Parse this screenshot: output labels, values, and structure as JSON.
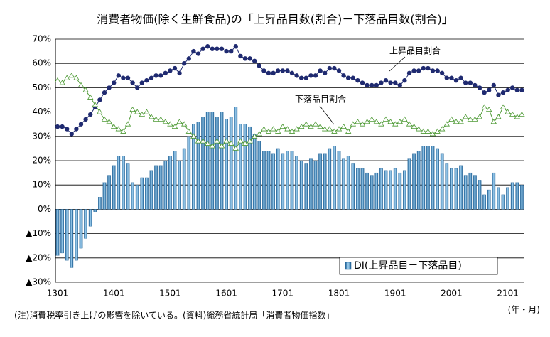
{
  "chart_data": {
    "type": "bar_line",
    "title": "消費者物価(除く生鮮食品)の「上昇品目数(割合)－下落品目数(割合)」",
    "footnote": "(注)消費税率引き上げの影響を除いている。(資料)総務省統計局「消費者物価指数」",
    "x_unit_label": "(年・月)",
    "categories": [
      "1301",
      null,
      null,
      null,
      null,
      null,
      null,
      null,
      null,
      null,
      null,
      null,
      "1401",
      null,
      null,
      null,
      null,
      null,
      null,
      null,
      null,
      null,
      null,
      null,
      "1501",
      null,
      null,
      null,
      null,
      null,
      null,
      null,
      null,
      null,
      null,
      null,
      "1601",
      null,
      null,
      null,
      null,
      null,
      null,
      null,
      null,
      null,
      null,
      null,
      "1701",
      null,
      null,
      null,
      null,
      null,
      null,
      null,
      null,
      null,
      null,
      null,
      "1801",
      null,
      null,
      null,
      null,
      null,
      null,
      null,
      null,
      null,
      null,
      null,
      "1901",
      null,
      null,
      null,
      null,
      null,
      null,
      null,
      null,
      null,
      null,
      null,
      "2001",
      null,
      null,
      null,
      null,
      null,
      null,
      null,
      null,
      null,
      null,
      null,
      "2101",
      null,
      null,
      null
    ],
    "series": [
      {
        "name": "DI(上昇品目－下落品目)",
        "kind": "bar",
        "color": "#3a86c0",
        "values": [
          -19,
          -18,
          -21,
          -24,
          -21,
          -16,
          -12,
          -7,
          -1,
          5,
          11,
          14,
          18,
          22,
          22,
          19,
          11,
          10,
          13,
          13,
          16,
          18,
          18,
          20,
          22,
          24,
          20,
          25,
          30,
          35,
          36,
          38,
          40,
          40,
          38,
          40,
          37,
          38,
          42,
          35,
          35,
          34,
          31,
          28,
          24,
          24,
          23,
          25,
          23,
          24,
          24,
          22,
          20,
          19,
          21,
          20,
          23,
          23,
          25,
          26,
          24,
          21,
          22,
          19,
          17,
          17,
          15,
          14,
          15,
          17,
          16,
          16,
          17,
          15,
          16,
          21,
          23,
          24,
          26,
          26,
          26,
          25,
          23,
          19,
          17,
          17,
          18,
          14,
          15,
          14,
          12,
          6,
          8,
          15,
          9,
          6,
          9,
          11,
          11,
          10
        ]
      },
      {
        "name": "上昇品目割合",
        "kind": "line",
        "color": "#1f2a70",
        "values": [
          34,
          34,
          33,
          31,
          33,
          35,
          37,
          39,
          42,
          45,
          48,
          50,
          52,
          55,
          54,
          54,
          52,
          50,
          52,
          53,
          54,
          55,
          55,
          56,
          57,
          58,
          56,
          60,
          62,
          65,
          64,
          66,
          67,
          66,
          66,
          66,
          65,
          65,
          67,
          63,
          62,
          62,
          61,
          59,
          57,
          56,
          56,
          57,
          57,
          57,
          56,
          55,
          54,
          54,
          55,
          55,
          57,
          56,
          58,
          58,
          57,
          55,
          54,
          54,
          53,
          52,
          51,
          51,
          51,
          52,
          53,
          52,
          52,
          51,
          53,
          56,
          57,
          57,
          58,
          58,
          57,
          57,
          56,
          54,
          54,
          53,
          54,
          52,
          52,
          51,
          50,
          48,
          49,
          51,
          47,
          48,
          49,
          50,
          49,
          49
        ]
      },
      {
        "name": "下落品目割合",
        "kind": "line",
        "color": "#4e9a35",
        "values": [
          53,
          52,
          54,
          55,
          54,
          51,
          49,
          46,
          43,
          40,
          37,
          36,
          34,
          33,
          32,
          35,
          41,
          40,
          39,
          40,
          38,
          37,
          37,
          36,
          35,
          34,
          36,
          35,
          32,
          30,
          28,
          28,
          27,
          26,
          28,
          26,
          28,
          27,
          25,
          28,
          27,
          28,
          30,
          31,
          33,
          32,
          33,
          32,
          34,
          33,
          32,
          33,
          34,
          35,
          34,
          35,
          34,
          33,
          33,
          32,
          33,
          34,
          32,
          35,
          36,
          35,
          36,
          37,
          36,
          35,
          37,
          36,
          35,
          36,
          37,
          35,
          34,
          33,
          32,
          32,
          31,
          32,
          33,
          35,
          37,
          36,
          36,
          38,
          37,
          37,
          38,
          42,
          41,
          36,
          38,
          42,
          40,
          39,
          38,
          39
        ]
      }
    ],
    "ylim": [
      -30,
      70
    ],
    "yticks": [
      {
        "value": -30,
        "label": "▲30%"
      },
      {
        "value": -20,
        "label": "▲20%"
      },
      {
        "value": -10,
        "label": "▲10%"
      },
      {
        "value": 0,
        "label": "0%"
      },
      {
        "value": 10,
        "label": "10%"
      },
      {
        "value": 20,
        "label": "20%"
      },
      {
        "value": 30,
        "label": "30%"
      },
      {
        "value": 40,
        "label": "40%"
      },
      {
        "value": 50,
        "label": "50%"
      },
      {
        "value": 60,
        "label": "60%"
      },
      {
        "value": 70,
        "label": "70%"
      }
    ],
    "grid": true,
    "legend": "lower right"
  }
}
